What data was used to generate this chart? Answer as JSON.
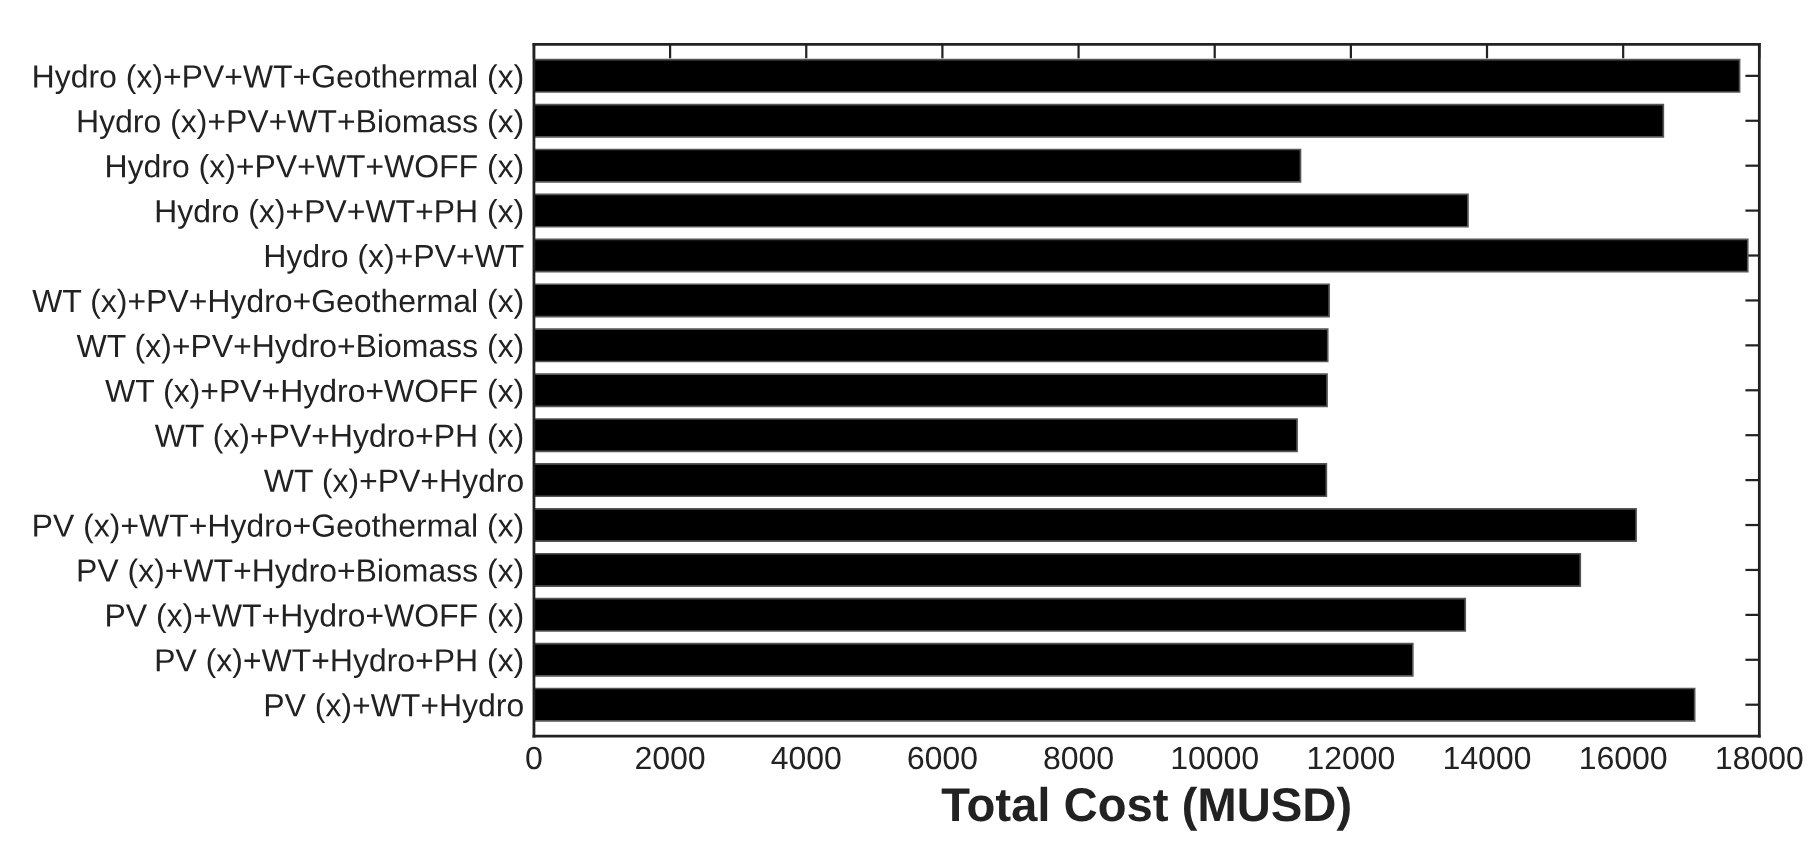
{
  "chart_data": {
    "type": "bar",
    "orientation": "horizontal",
    "xlabel": "Total Cost (MUSD)",
    "categories": [
      "Hydro (x)+PV+WT+Geothermal (x)",
      "Hydro (x)+PV+WT+Biomass (x)",
      "Hydro (x)+PV+WT+WOFF (x)",
      "Hydro (x)+PV+WT+PH (x)",
      "Hydro (x)+PV+WT",
      "WT (x)+PV+Hydro+Geothermal (x)",
      "WT (x)+PV+Hydro+Biomass (x)",
      "WT (x)+PV+Hydro+WOFF (x)",
      "WT (x)+PV+Hydro+PH (x)",
      "WT (x)+PV+Hydro",
      "PV (x)+WT+Hydro+Geothermal (x)",
      "PV (x)+WT+Hydro+Biomass (x)",
      "PV (x)+WT+Hydro+WOFF (x)",
      "PV (x)+WT+Hydro+PH (x)",
      "PV (x)+WT+Hydro"
    ],
    "values": [
      17710,
      16590,
      11260,
      13720,
      17830,
      11680,
      11660,
      11650,
      11210,
      11640,
      16190,
      15370,
      13680,
      12910,
      17050
    ],
    "color": "#000000",
    "xlim": [
      0,
      18000
    ],
    "xticks": [
      0,
      2000,
      4000,
      6000,
      8000,
      10000,
      12000,
      14000,
      16000,
      18000
    ],
    "grid": false,
    "legend": false
  }
}
